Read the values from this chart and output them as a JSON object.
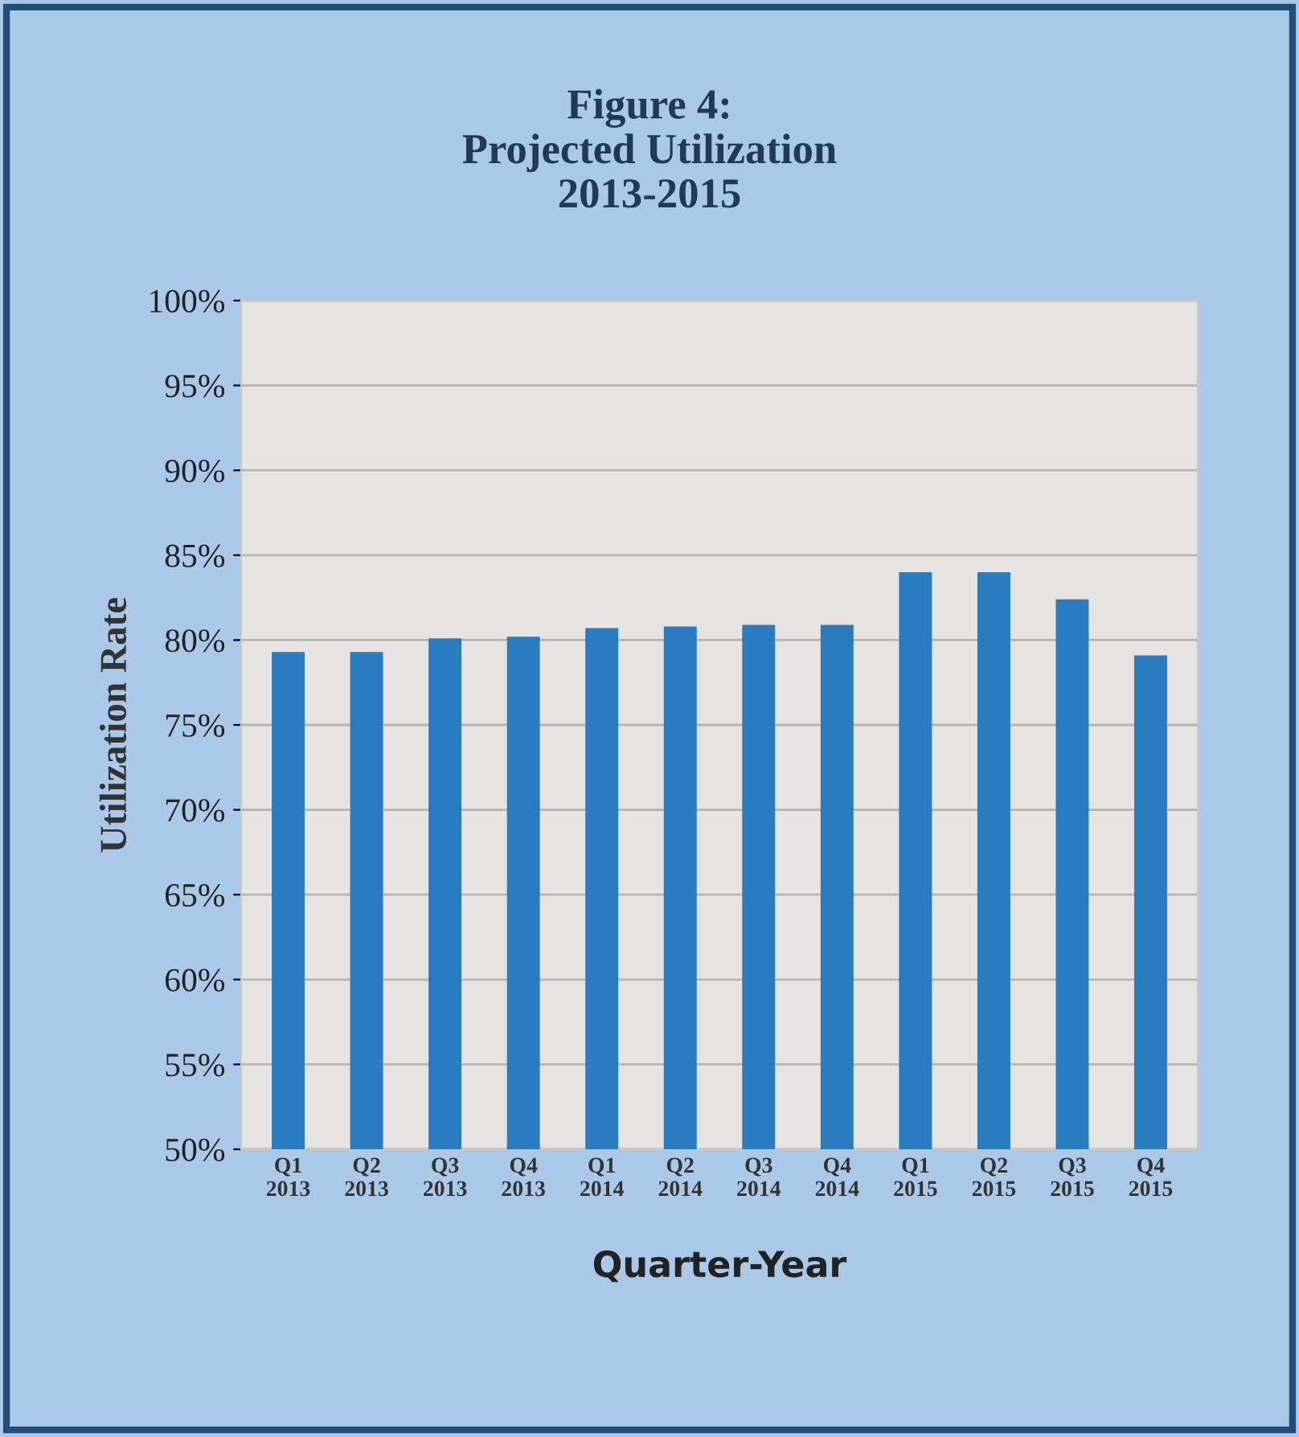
{
  "chart_data": {
    "type": "bar",
    "title": "Figure 4:\nProjected Utilization\n2013-2015",
    "xlabel": "Quarter-Year",
    "ylabel": "Utilization Rate",
    "categories": [
      "Q1\n2013",
      "Q2\n2013",
      "Q3\n2013",
      "Q4\n2013",
      "Q1\n2014",
      "Q2\n2014",
      "Q3\n2014",
      "Q4\n2014",
      "Q1\n2015",
      "Q2\n2015",
      "Q3\n2015",
      "Q4\n2015"
    ],
    "values": [
      79.3,
      79.3,
      80.1,
      80.2,
      80.7,
      80.8,
      80.9,
      80.9,
      84.0,
      84.0,
      82.4,
      79.1
    ],
    "color": "#2a7cc0",
    "ylim": [
      50,
      100
    ],
    "yticks": [
      {
        "value": 50,
        "label": "50%"
      },
      {
        "value": 55,
        "label": "55%"
      },
      {
        "value": 60,
        "label": "60%"
      },
      {
        "value": 65,
        "label": "65%"
      },
      {
        "value": 70,
        "label": "70%"
      },
      {
        "value": 75,
        "label": "75%"
      },
      {
        "value": 80,
        "label": "80%"
      },
      {
        "value": 85,
        "label": "85%"
      },
      {
        "value": 90,
        "label": "90%"
      },
      {
        "value": 95,
        "label": "95%"
      },
      {
        "value": 100,
        "label": "100%"
      }
    ],
    "grid": "y"
  }
}
